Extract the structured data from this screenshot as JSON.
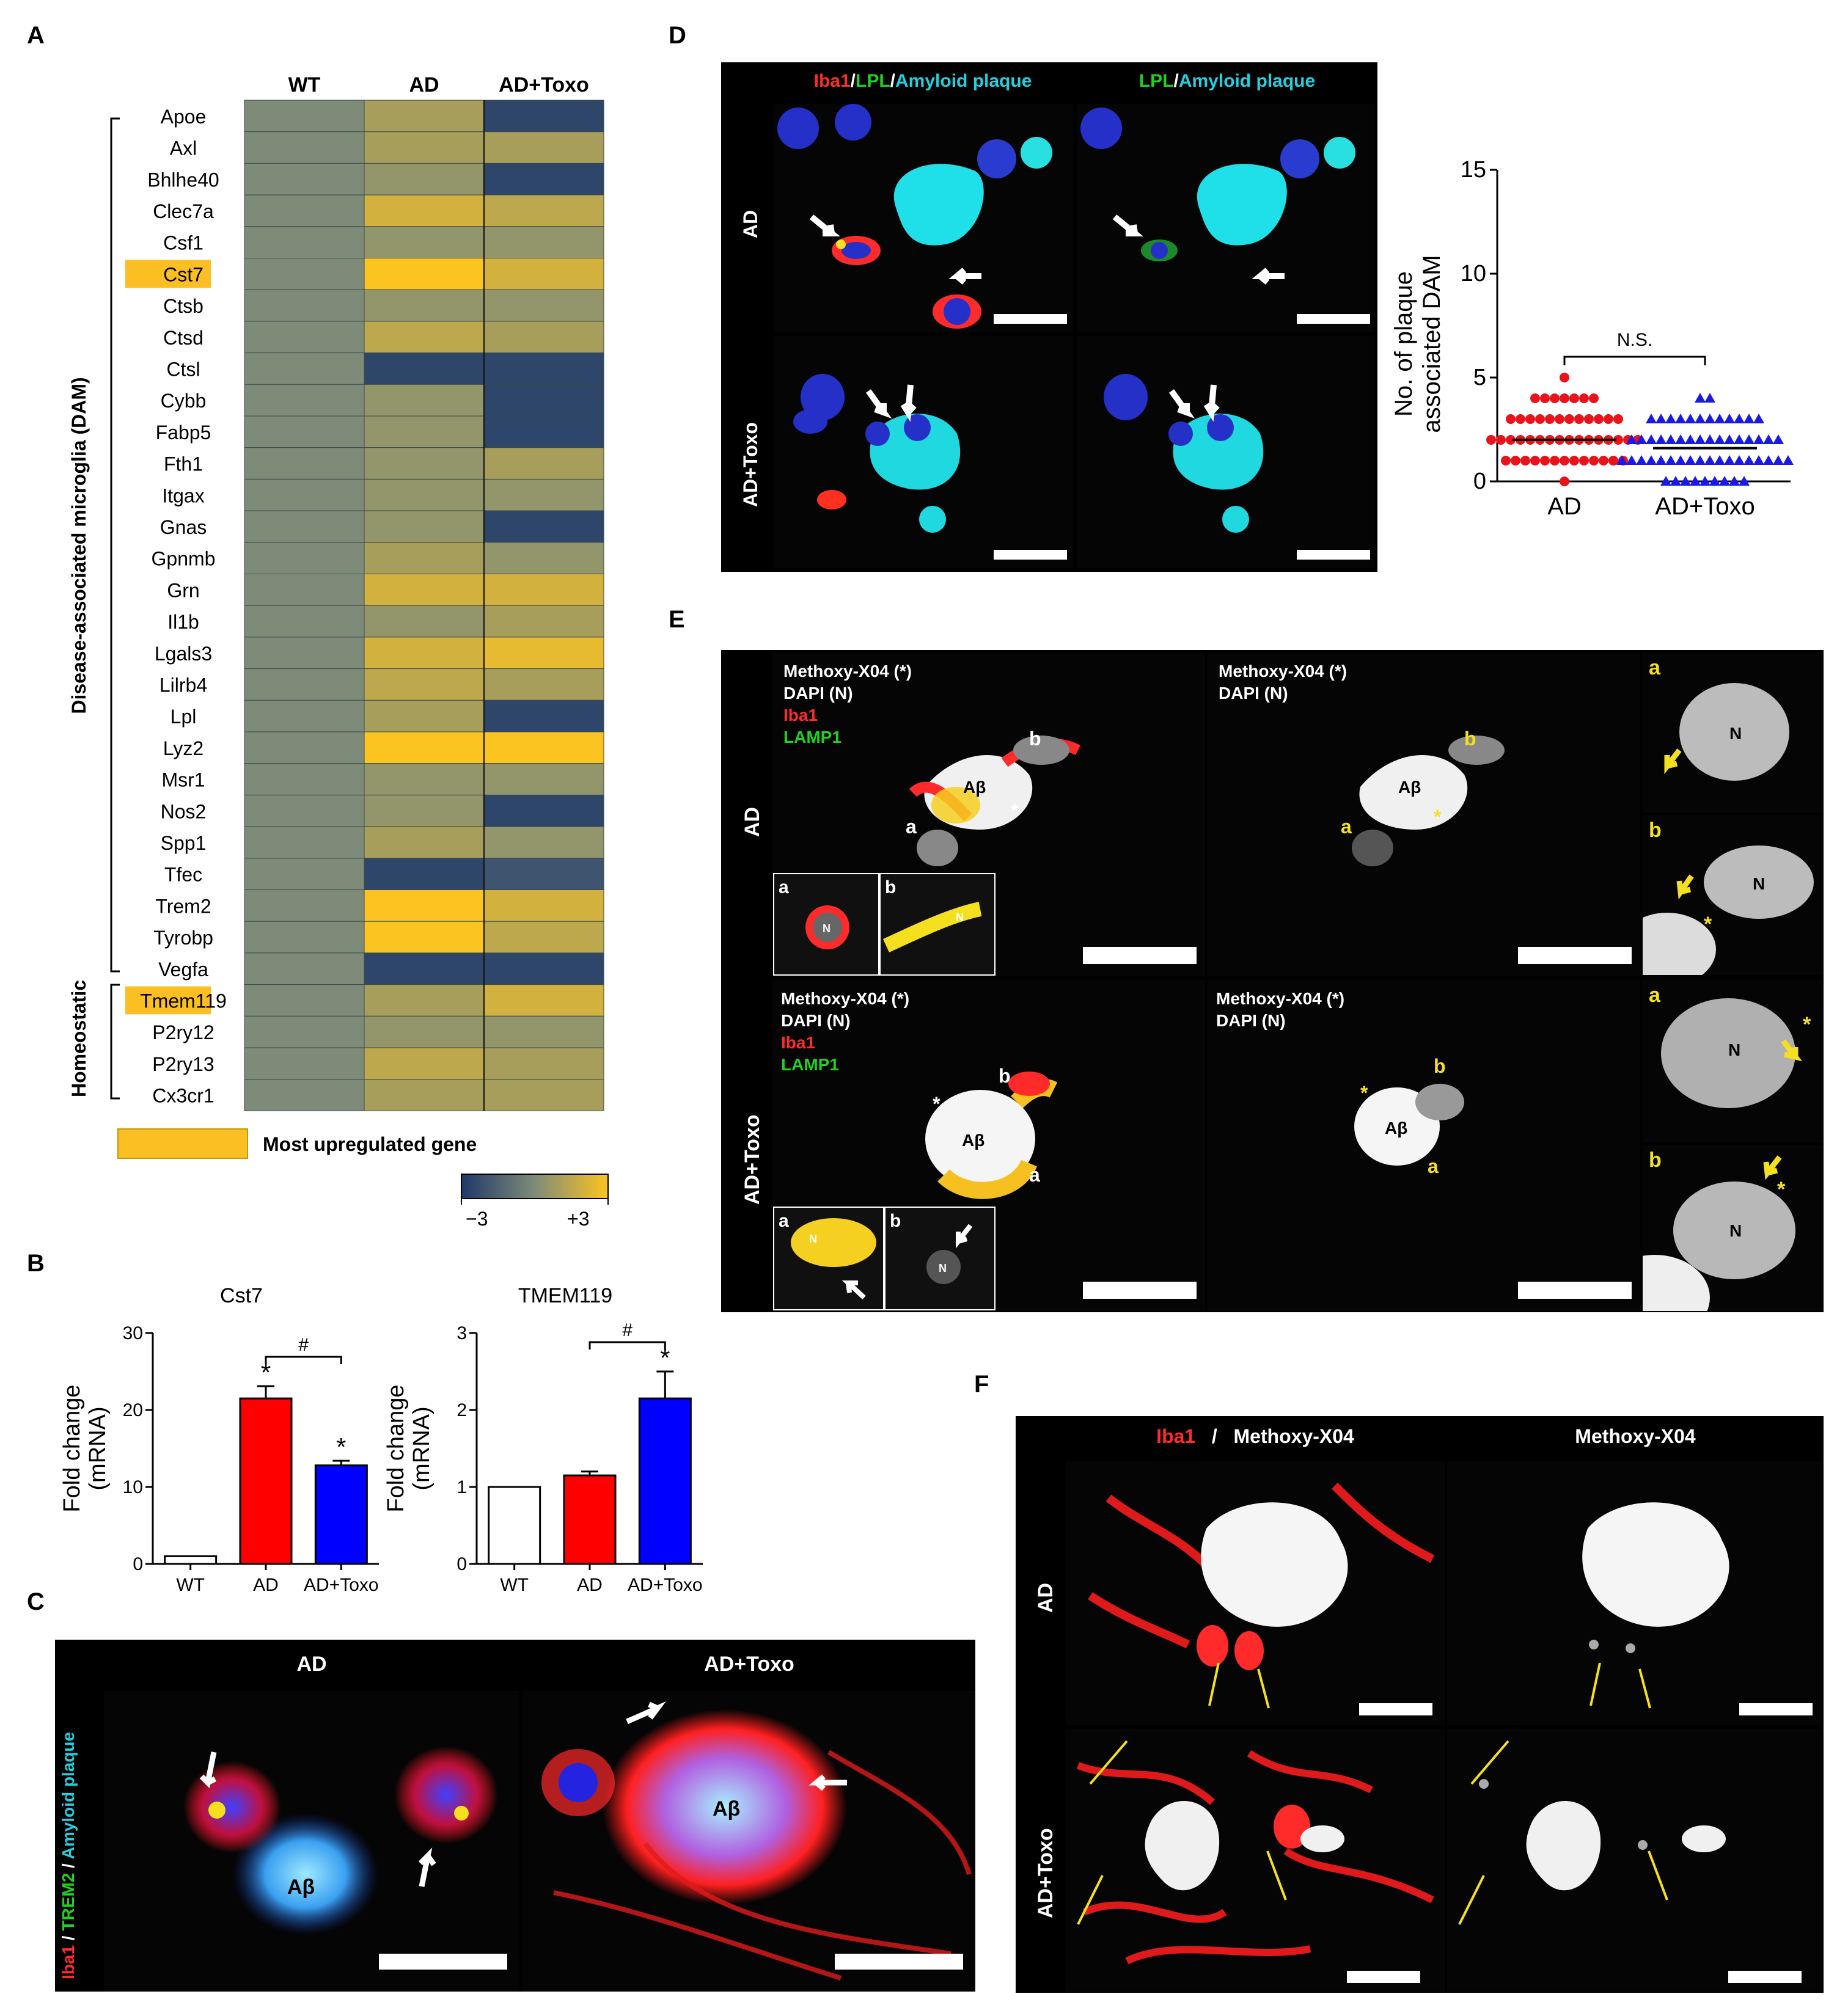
{
  "panels": [
    "A",
    "B",
    "C",
    "D",
    "E",
    "F"
  ],
  "heatmap": {
    "columns": [
      "WT",
      "AD",
      "AD+Toxo"
    ],
    "genes": [
      "Apoe",
      "Axl",
      "Bhlhe40",
      "Clec7a",
      "Csf1",
      "Cst7",
      "Ctsb",
      "Ctsd",
      "Ctsl",
      "Cybb",
      "Fabp5",
      "Fth1",
      "Itgax",
      "Gnas",
      "Gpnmb",
      "Grn",
      "Il1b",
      "Lgals3",
      "Lilrb4",
      "Lpl",
      "Lyz2",
      "Msr1",
      "Nos2",
      "Spp1",
      "Tfec",
      "Trem2",
      "Tyrobp",
      "Vegfa",
      "Tmem119",
      "P2ry12",
      "P2ry13",
      "Cx3cr1"
    ],
    "highlighted": [
      "Cst7",
      "Tmem119"
    ],
    "values": [
      [
        0,
        1,
        -2.5
      ],
      [
        0,
        1,
        1
      ],
      [
        0,
        0.5,
        -2.5
      ],
      [
        0,
        2,
        1.5
      ],
      [
        0,
        0.5,
        0.5
      ],
      [
        0,
        3,
        2
      ],
      [
        0,
        0.5,
        0.5
      ],
      [
        0,
        1.5,
        1
      ],
      [
        0,
        -2.5,
        -2.5
      ],
      [
        0,
        0.5,
        -2.5
      ],
      [
        0,
        0.5,
        -2.5
      ],
      [
        0,
        0.5,
        1
      ],
      [
        0,
        0.5,
        0.5
      ],
      [
        0,
        0.5,
        -2.5
      ],
      [
        0,
        1,
        0.5
      ],
      [
        0,
        2,
        2
      ],
      [
        0,
        0.5,
        1
      ],
      [
        0,
        2,
        2.5
      ],
      [
        0,
        1.5,
        1
      ],
      [
        0,
        1,
        -2.5
      ],
      [
        0,
        3,
        3
      ],
      [
        0,
        0.5,
        0.5
      ],
      [
        0,
        0.5,
        -2.5
      ],
      [
        0,
        1,
        0.5
      ],
      [
        0,
        -2.5,
        -2
      ],
      [
        0,
        3,
        2
      ],
      [
        0,
        3,
        1.5
      ],
      [
        0,
        -2.5,
        -2.5
      ],
      [
        0,
        1,
        2
      ],
      [
        0,
        0.5,
        0.5
      ],
      [
        0,
        1.5,
        1
      ],
      [
        0,
        1,
        1
      ]
    ],
    "group_dam": "Disease-associated microglia (DAM)",
    "group_homeostatic": "Homeostatic",
    "legend_label": "Most upregulated gene",
    "scale_min": "−3",
    "scale_max": "+3",
    "color_low": "#1f3868",
    "color_mid": "#7e8b79",
    "color_high": "#fcc420",
    "highlight_color": "#fbbf23"
  },
  "chart_data": [
    {
      "type": "bar",
      "title": "Cst7",
      "ylabel": "Fold change\n(mRNA)",
      "categories": [
        "WT",
        "AD",
        "AD+Toxo"
      ],
      "values": [
        1,
        21.5,
        12.8
      ],
      "errors": [
        0,
        1.6,
        0.6
      ],
      "colors": [
        "#ffffff",
        "#ff0000",
        "#0000ff"
      ],
      "ylim": [
        0,
        30
      ],
      "yticks": [
        0,
        10,
        20,
        30
      ],
      "star_marks": [
        "",
        "*",
        "*"
      ],
      "bracket_label": "#"
    },
    {
      "type": "bar",
      "title": "TMEM119",
      "ylabel": "Fold change\n(mRNA)",
      "categories": [
        "WT",
        "AD",
        "AD+Toxo"
      ],
      "values": [
        1,
        1.15,
        2.15
      ],
      "errors": [
        0,
        0.05,
        0.35
      ],
      "colors": [
        "#ffffff",
        "#ff0000",
        "#0000ff"
      ],
      "ylim": [
        0,
        3
      ],
      "yticks": [
        0,
        1,
        2,
        3
      ],
      "star_marks": [
        "",
        "",
        "*"
      ],
      "bracket_label": "#"
    },
    {
      "type": "scatter",
      "ylabel": "No. of plaque\nassociated DAM",
      "categories": [
        "AD",
        "AD+Toxo"
      ],
      "ylim": [
        0,
        15
      ],
      "yticks": [
        0,
        5,
        10,
        15
      ],
      "means": [
        2,
        1.6
      ],
      "sig_label": "N.S.",
      "series": [
        {
          "name": "AD",
          "color": "#e8131b",
          "marker": "circle",
          "values": [
            5,
            4,
            4,
            4,
            4,
            4,
            4,
            4,
            3,
            3,
            3,
            3,
            3,
            3,
            3,
            3,
            3,
            3,
            3,
            3,
            2,
            2,
            2,
            2,
            2,
            2,
            2,
            2,
            2,
            2,
            2,
            2,
            2,
            2,
            2,
            2,
            1,
            1,
            1,
            1,
            1,
            1,
            1,
            1,
            1,
            1,
            1,
            1,
            1,
            0
          ]
        },
        {
          "name": "AD+Toxo",
          "color": "#1a1ae6",
          "marker": "triangle",
          "values": [
            4,
            4,
            3,
            3,
            3,
            3,
            3,
            3,
            3,
            3,
            3,
            3,
            3,
            3,
            2,
            2,
            2,
            2,
            2,
            2,
            2,
            2,
            2,
            2,
            2,
            2,
            2,
            2,
            2,
            2,
            1,
            1,
            1,
            1,
            1,
            1,
            1,
            1,
            1,
            1,
            1,
            1,
            1,
            1,
            1,
            1,
            1,
            1,
            0,
            0,
            0,
            0,
            0,
            0,
            0,
            0,
            0
          ]
        }
      ]
    }
  ],
  "panelC": {
    "header_left": "AD",
    "header_right": "AD+Toxo",
    "side_label_iba": "Iba1",
    "side_label_trem": "TREM2",
    "side_label_plaque": "Amyloid plaque",
    "slash": " / ",
    "abeta": "Aβ"
  },
  "panelD": {
    "h1_iba": "Iba1",
    "h1_lpl": "LPL",
    "h1_plaque": "Amyloid plaque",
    "h2_lpl": "LPL",
    "h2_plaque": "Amyloid plaque",
    "slash": " / ",
    "row1": "AD",
    "row2": "AD+Toxo"
  },
  "panelE": {
    "row1": "AD",
    "row2": "AD+Toxo",
    "methoxy": "Methoxy-X04 (*)",
    "dapi": "DAPI (N)",
    "iba": "Iba1",
    "lamp": "LAMP1",
    "abeta": "Aβ",
    "a": "a",
    "b": "b",
    "n": "N",
    "star": "*"
  },
  "panelF": {
    "h_iba": "Iba1",
    "h_slash": "/",
    "h_methoxy": "Methoxy-X04",
    "h_methoxy2": "Methoxy-X04",
    "row1": "AD",
    "row2": "AD+Toxo"
  }
}
